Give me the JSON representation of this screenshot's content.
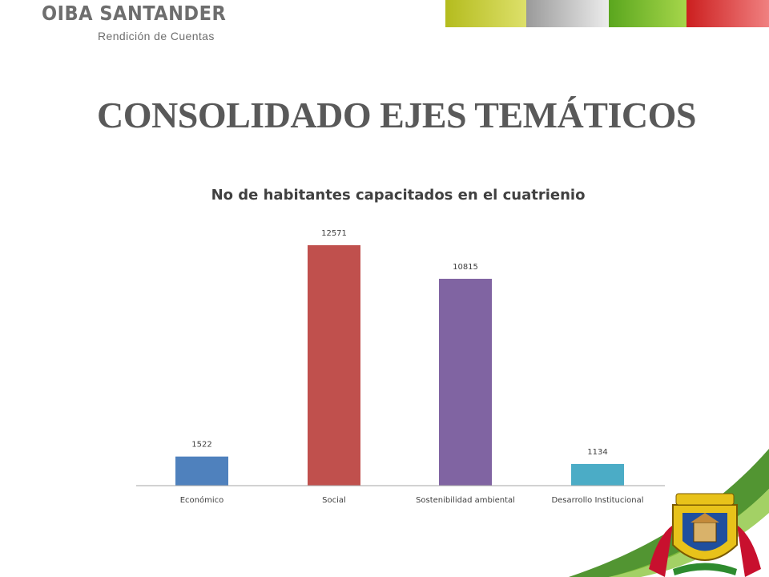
{
  "header": {
    "brand_title": "OIBA SANTANDER",
    "brand_subtitle": "Rendición de Cuentas",
    "strip_colors": [
      {
        "from": "#b4bc1e",
        "to": "#dde06a"
      },
      {
        "from": "#9a9a9a",
        "to": "#ececec"
      },
      {
        "from": "#5aa61e",
        "to": "#a6d64a"
      },
      {
        "from": "#cc1f1f",
        "to": "#f08080"
      }
    ]
  },
  "page_title": "CONSOLIDADO EJES TEMÁTICOS",
  "chart_data": {
    "type": "bar",
    "title": "No de habitantes capacitados en el cuatrienio",
    "categories": [
      "Económico",
      "Social",
      "Sostenibilidad ambiental",
      "Desarrollo Institucional"
    ],
    "values": [
      1522,
      12571,
      10815,
      1134
    ],
    "data_labels": [
      "1522",
      "12571",
      "10815",
      "1134"
    ],
    "colors": [
      "#4f81bd",
      "#c0504d",
      "#8064a2",
      "#4bacc6"
    ],
    "ylim": [
      0,
      12571
    ],
    "grid": false,
    "legend": "none",
    "xlabel": "",
    "ylabel": ""
  },
  "decor": {
    "swoosh_colors": [
      "#3f8a1c",
      "#8cc63f"
    ],
    "emblem_colors": {
      "red": "#c8102e",
      "gold": "#e8c21a",
      "blue": "#1f4f9e",
      "green": "#2e8b2e"
    }
  }
}
